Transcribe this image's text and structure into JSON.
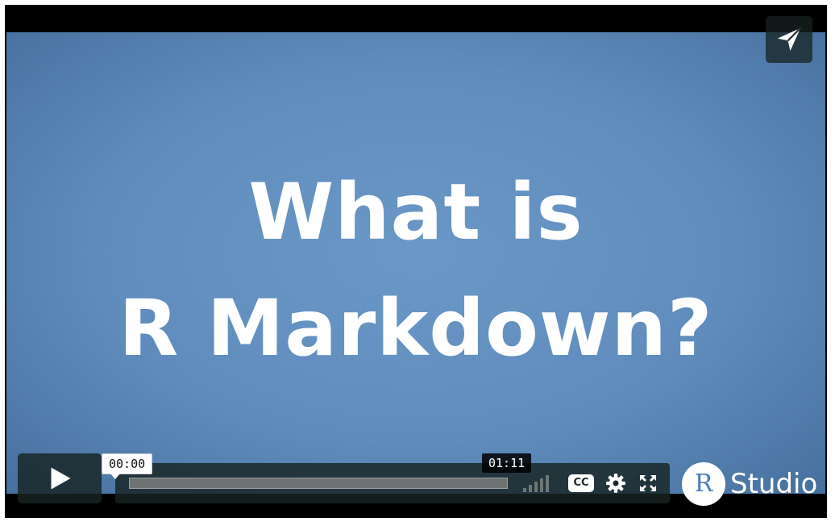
{
  "video": {
    "title_line1": "What is",
    "title_line2": "R Markdown?",
    "background_color": "#5f8cbc"
  },
  "player": {
    "share_icon": "paper-plane-icon",
    "play_icon": "play-icon",
    "current_time": "00:00",
    "total_time": "01:11",
    "progress": 0,
    "cc_label": "CC",
    "settings_icon": "gear-icon",
    "fullscreen_icon": "fullscreen-icon",
    "volume_icon": "volume-bars-icon"
  },
  "branding": {
    "logo_letter": "R",
    "logo_text": "Studio"
  }
}
